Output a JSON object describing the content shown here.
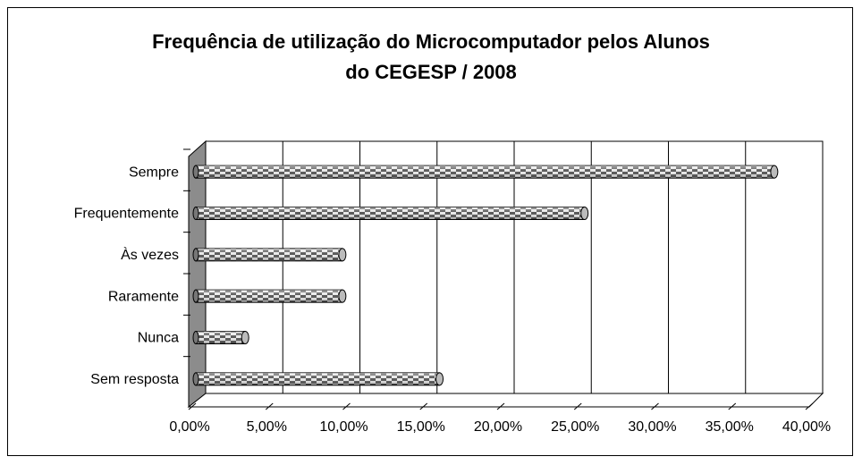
{
  "chart_data": {
    "type": "bar",
    "orientation": "horizontal",
    "title": "Frequência de utilização do Microcomputador pelos Alunos do CEGESP / 2008",
    "categories": [
      "Sempre",
      "Frequentemente",
      "Às vezes",
      "Raramente",
      "Nunca",
      "Sem resposta"
    ],
    "values": [
      37.5,
      25.2,
      9.5,
      9.5,
      3.2,
      15.8
    ],
    "color": "#9a9a9a",
    "xlim": [
      0,
      40
    ],
    "xticks": [
      {
        "value": 0,
        "label": "0,00%"
      },
      {
        "value": 5,
        "label": "5,00%"
      },
      {
        "value": 10,
        "label": "10,00%"
      },
      {
        "value": 15,
        "label": "15,00%"
      },
      {
        "value": 20,
        "label": "20,00%"
      },
      {
        "value": 25,
        "label": "25,00%"
      },
      {
        "value": 30,
        "label": "30,00%"
      },
      {
        "value": 35,
        "label": "35,00%"
      },
      {
        "value": 40,
        "label": "40,00%"
      }
    ],
    "grid": true
  }
}
